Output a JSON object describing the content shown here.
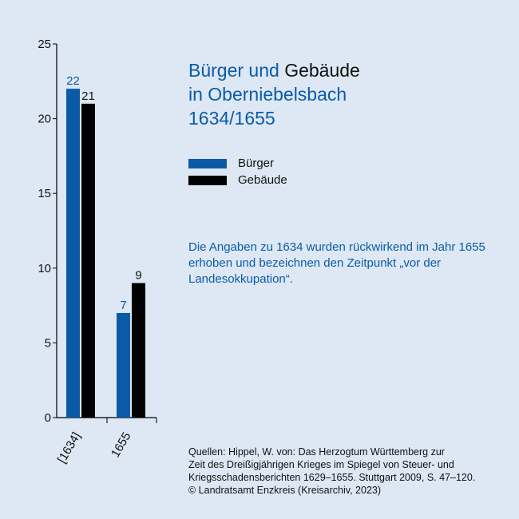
{
  "colors": {
    "accent": "#0b5aa8",
    "dark": "#000000",
    "background": "#dde8f4"
  },
  "title": {
    "part1": "Bürger und",
    "part2": "Gebäude",
    "line2": "in Oberniebelsbach",
    "line3": "1634/1655"
  },
  "note": "Die Angaben zu 1634 wurden rückwirkend im Jahr 1655 erhoben und bezeichnen den Zeitpunkt „vor der Landesokkupation“.",
  "sources": [
    "Quellen: Hippel, W. von: Das Herzogtum Württemberg zur",
    "Zeit des Dreißigjährigen Krieges im Spiegel von Steuer- und",
    "Kriegsschadensberichten 1629–1655. Stuttgart 2009, S. 47–120.",
    "© Landratsamt Enzkreis (Kreisarchiv, 2023)"
  ],
  "chart_data": {
    "type": "bar",
    "categories": [
      "[1634]",
      "1655"
    ],
    "series": [
      {
        "name": "Bürger",
        "values": [
          22,
          7
        ],
        "color": "#0b5aa8"
      },
      {
        "name": "Gebäude",
        "values": [
          21,
          9
        ],
        "color": "#000000"
      }
    ],
    "ylim": [
      0,
      25
    ],
    "yticks": [
      0,
      5,
      10,
      15,
      20,
      25
    ],
    "legend": "right",
    "grid": false
  }
}
